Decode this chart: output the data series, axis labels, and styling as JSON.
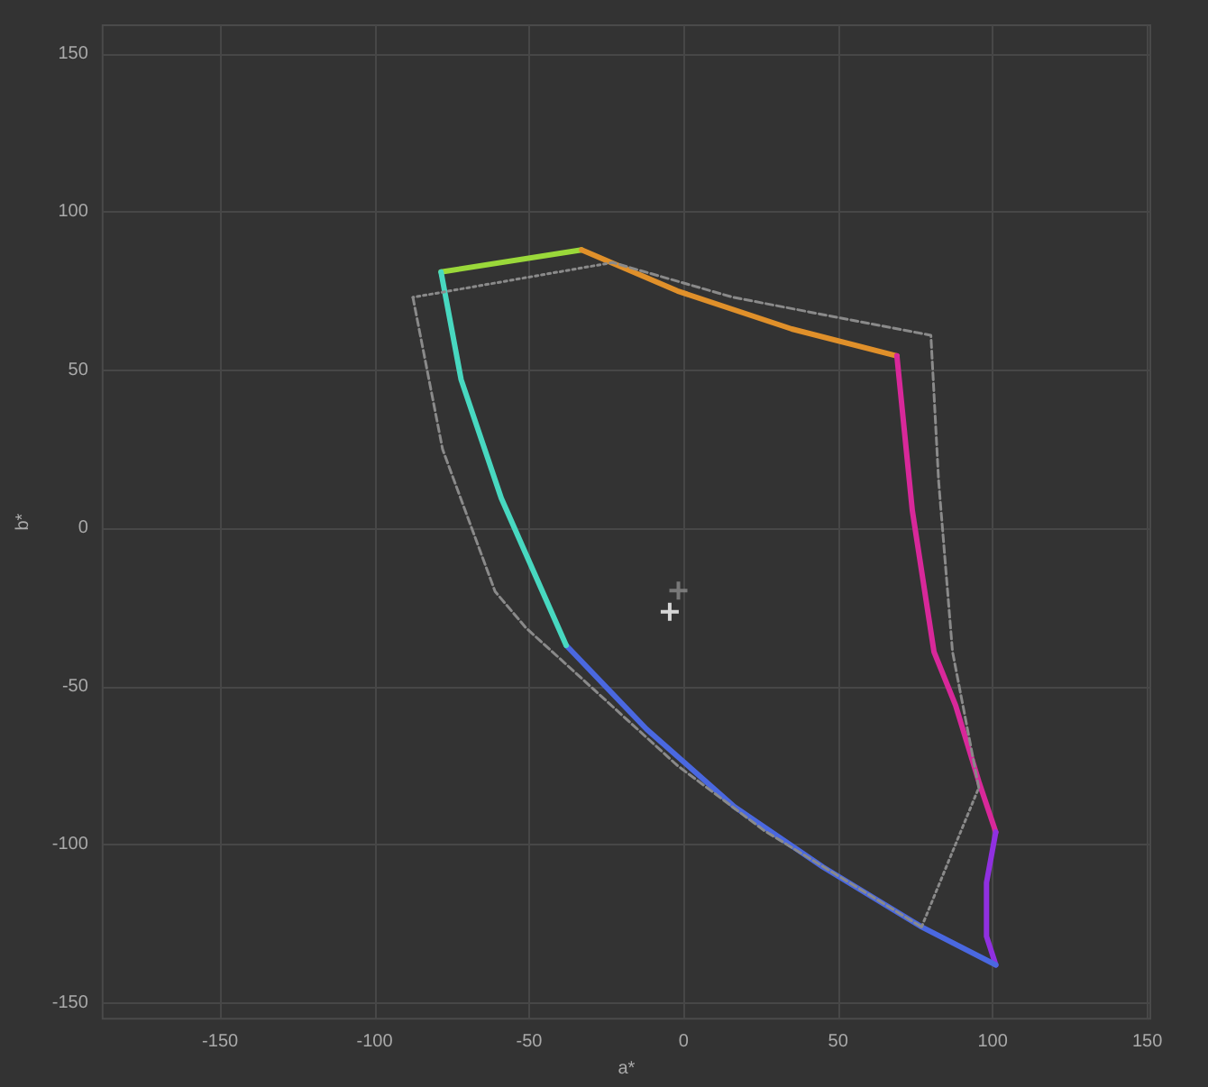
{
  "chart_data": {
    "type": "line",
    "xlabel": "a*",
    "ylabel": "b*",
    "xlim": [
      -188,
      151
    ],
    "ylim": [
      -155,
      159
    ],
    "xticks": [
      -150,
      -100,
      -50,
      0,
      50,
      100,
      150
    ],
    "yticks": [
      -150,
      -100,
      -50,
      0,
      50,
      100,
      150
    ],
    "grid": true,
    "marker": "none",
    "line_style": "solid",
    "series": [
      {
        "color": "#9ad83a",
        "x": [
          -78.5,
          -33
        ],
        "values": [
          81,
          88
        ]
      },
      {
        "color": "#e0902a",
        "x": [
          -33,
          -2,
          35,
          69
        ],
        "values": [
          88,
          75,
          63,
          54.5
        ]
      },
      {
        "color": "#d8289a",
        "x": [
          69,
          74,
          81,
          88,
          95.5,
          101
        ],
        "values": [
          54.5,
          5.6,
          -39,
          -56,
          -80,
          -96
        ]
      },
      {
        "color": "#9030e0",
        "x": [
          101,
          98,
          98,
          101
        ],
        "values": [
          -96,
          -112,
          -129,
          -138
        ]
      },
      {
        "color": "#4a68e0",
        "x": [
          101,
          77,
          45,
          16.4,
          -12,
          -38
        ],
        "values": [
          -138,
          -126,
          -107,
          -88,
          -63.5,
          -37
        ]
      },
      {
        "color": "#48d8c0",
        "x": [
          -38,
          -59,
          -72,
          -78.5
        ],
        "values": [
          -37,
          9.5,
          47,
          81
        ]
      },
      {
        "color": "#8a8a8a",
        "line_style": "dashed",
        "x": [
          -87.6,
          -78,
          -61,
          -51,
          -38,
          -2,
          26,
          77
        ],
        "values": [
          73,
          25,
          -20,
          -31.5,
          -43,
          -75,
          -95.5,
          -126
        ]
      },
      {
        "color": "#8a8a8a",
        "line_style": "dotted",
        "x": [
          77,
          95.5
        ],
        "values": [
          -126,
          -82
        ]
      },
      {
        "color": "#8a8a8a",
        "line_style": "dashed",
        "x": [
          95.5,
          87,
          82.5,
          80,
          16,
          -23
        ],
        "values": [
          -82,
          -39,
          15,
          61,
          73,
          84
        ]
      },
      {
        "color": "#8a8a8a",
        "line_style": "dotted",
        "x": [
          -23,
          -87.6
        ],
        "values": [
          84,
          73
        ]
      },
      {
        "type": "scatter",
        "marker": "cross",
        "color": "#8a8a8a",
        "x": [
          -1.7
        ],
        "values": [
          -19.7
        ]
      },
      {
        "type": "scatter",
        "marker": "cross",
        "color": "#ffffff",
        "x": [
          -4.5
        ],
        "values": [
          -26.4
        ]
      }
    ]
  }
}
